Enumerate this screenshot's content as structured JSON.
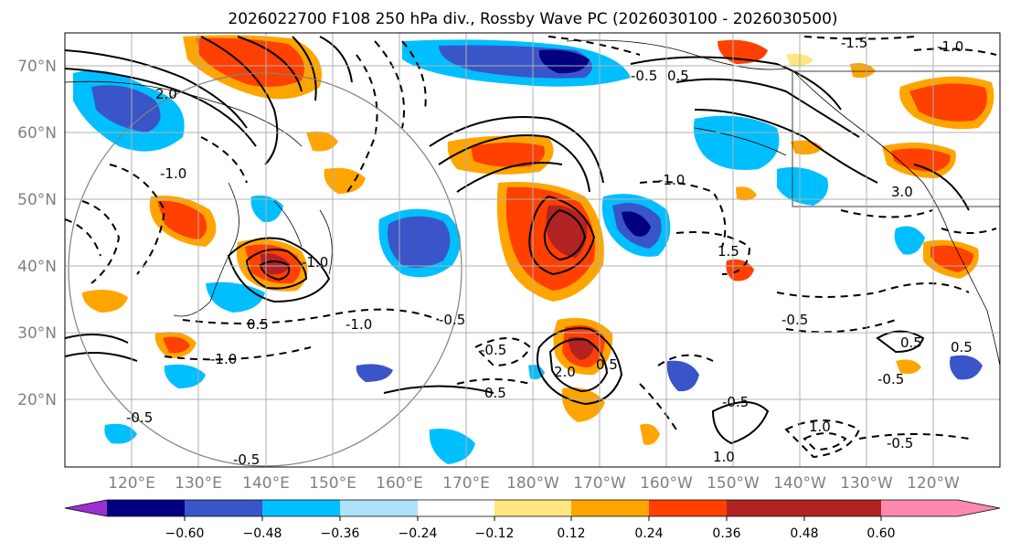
{
  "figure": {
    "title": "2026022700 F108 250 hPa div., Rossby Wave PC (2026030100 - 2026030500)"
  },
  "map": {
    "lat_labels": [
      "70°N",
      "60°N",
      "50°N",
      "40°N",
      "30°N",
      "20°N"
    ],
    "lon_labels": [
      "120°E",
      "130°E",
      "140°E",
      "150°E",
      "160°E",
      "170°E",
      "180°W",
      "170°W",
      "160°W",
      "150°W",
      "140°W",
      "130°W",
      "120°W"
    ],
    "contour_labels": [
      "-1.5",
      "-1.0",
      "-0.5",
      "0.5",
      "1.0",
      "1.5",
      "2.0",
      "3.0"
    ]
  },
  "colorbar": {
    "tick_labels": [
      "−0.60",
      "−0.48",
      "−0.36",
      "−0.24",
      "−0.12",
      "0.12",
      "0.24",
      "0.36",
      "0.48",
      "0.60"
    ],
    "colors": [
      "#9b30d0",
      "#000080",
      "#3a55c8",
      "#00bfff",
      "#aee0f8",
      "#ffffff",
      "#ffe680",
      "#ffa500",
      "#ff4000",
      "#b22222",
      "#ff88b0"
    ]
  }
}
